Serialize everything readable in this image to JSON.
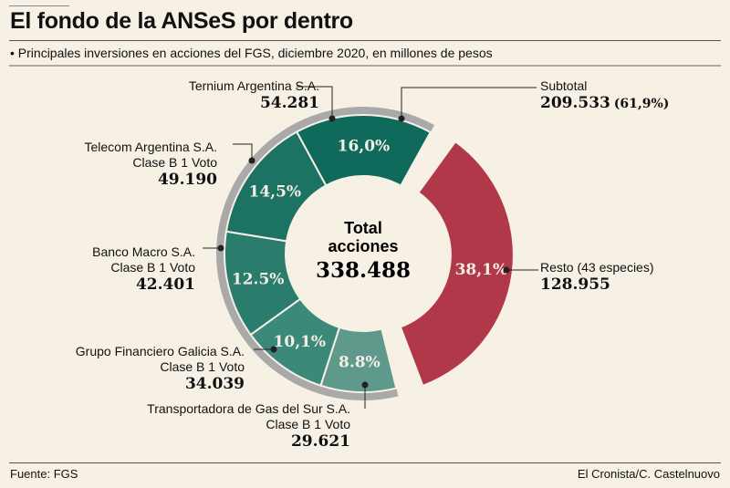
{
  "title": "El fondo de la ANSeS por dentro",
  "subtitle": "• Principales inversiones en acciones del FGS, diciembre 2020, en millones de pesos",
  "source": "Fuente: FGS",
  "credit": "El Cronista/C. Castelnuovo",
  "chart_data": {
    "type": "pie",
    "title": "El fondo de la ANSeS por dentro",
    "center_label": [
      "Total",
      "acciones"
    ],
    "center_value": "338.488",
    "subtotal": {
      "label": "Subtotal",
      "value": "209.533",
      "pct": "(61,9%)"
    },
    "slices": [
      {
        "name": "Ternium Argentina S.A.",
        "line2": "",
        "value": 54281,
        "value_label": "54.281",
        "pct": 16.0,
        "pct_label": "16,0%",
        "color": "#0f6a5c"
      },
      {
        "name": "Telecom Argentina S.A.",
        "line2": "Clase B 1 Voto",
        "value": 49190,
        "value_label": "49.190",
        "pct": 14.5,
        "pct_label": "14,5%",
        "color": "#1d7363"
      },
      {
        "name": "Banco Macro S.A.",
        "line2": "Clase B 1 Voto",
        "value": 42401,
        "value_label": "42.401",
        "pct": 12.5,
        "pct_label": "12.5%",
        "color": "#2a7c6d"
      },
      {
        "name": "Grupo Financiero Galicia S.A.",
        "line2": "Clase B 1 Voto",
        "value": 34039,
        "value_label": "34.039",
        "pct": 10.1,
        "pct_label": "10,1%",
        "color": "#3b8979"
      },
      {
        "name": "Transportadora de Gas del Sur S.A.",
        "line2": "Clase B 1 Voto",
        "value": 29621,
        "value_label": "29.621",
        "pct": 8.8,
        "pct_label": "8.8%",
        "color": "#5e998c"
      },
      {
        "name": "Resto (43 especies)",
        "line2": "",
        "value": 128955,
        "value_label": "128.955",
        "pct": 38.1,
        "pct_label": "38,1%",
        "color": "#b03848"
      }
    ],
    "ring_color": "#a9a9a9"
  }
}
